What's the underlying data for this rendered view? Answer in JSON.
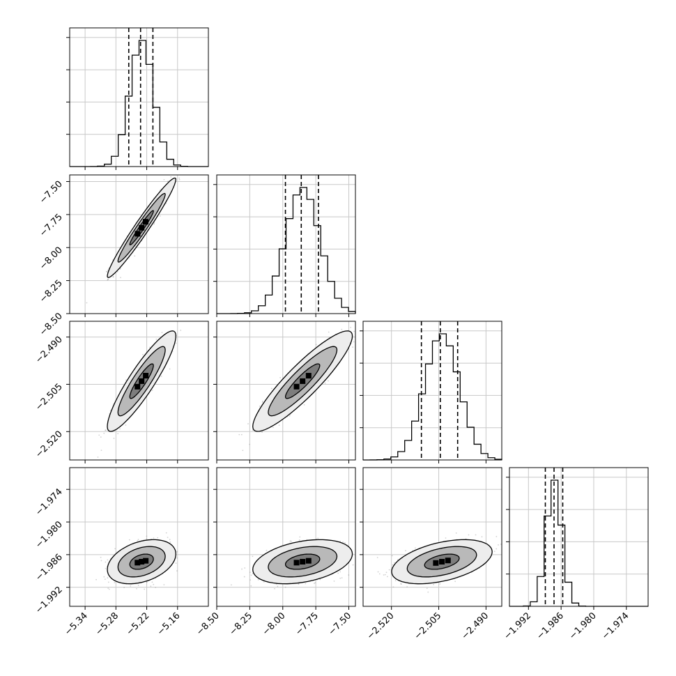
{
  "chart_data": {
    "type": "scatter",
    "title": "",
    "description_params": [
      {
        "mean": -5.23,
        "sigma": 0.023,
        "q16": -5.255,
        "q50": -5.232,
        "q84": -5.208,
        "range": [
          -5.37,
          -5.1
        ],
        "ticks": [
          -5.34,
          -5.28,
          -5.22,
          -5.16
        ],
        "tick_labels": [
          "−5.34",
          "−5.28",
          "−5.22",
          "−5.16"
        ]
      },
      {
        "mean": -7.85,
        "sigma": 0.13,
        "q16": -7.98,
        "q50": -7.86,
        "q84": -7.73,
        "range": [
          -8.5,
          -7.45
        ],
        "ticks": [
          -8.5,
          -8.25,
          -8.0,
          -7.75,
          -7.5
        ],
        "tick_labels": [
          "−8.50",
          "−8.25",
          "−8.00",
          "−7.75",
          "−7.50"
        ]
      },
      {
        "mean": -2.504,
        "sigma": 0.0055,
        "q16": -2.5105,
        "q50": -2.5045,
        "q84": -2.499,
        "range": [
          -2.529,
          -2.485
        ],
        "ticks": [
          -2.52,
          -2.505,
          -2.49
        ],
        "tick_labels": [
          "−2.520",
          "−2.505",
          "−2.490"
        ]
      },
      {
        "mean": -1.9873,
        "sigma": 0.0014,
        "q16": -1.9889,
        "q50": -1.9873,
        "q84": -1.9857,
        "range": [
          -1.9955,
          -1.97
        ],
        "ticks": [
          -1.992,
          -1.986,
          -1.98,
          -1.974
        ],
        "tick_labels": [
          "−1.992",
          "−1.986",
          "−1.980",
          "−1.974"
        ]
      }
    ],
    "correlations": [
      [
        1.0,
        0.97,
        0.9,
        0.35
      ],
      [
        0.97,
        1.0,
        0.9,
        0.35
      ],
      [
        0.9,
        0.9,
        1.0,
        0.45
      ],
      [
        0.35,
        0.35,
        0.45,
        1.0
      ]
    ],
    "histogram_bins": 20,
    "quantile_lines": [
      0.16,
      0.5,
      0.84
    ],
    "contour_levels": [
      0.39,
      0.86,
      0.99
    ],
    "grid": true,
    "colors": {
      "line": "#000000",
      "points": "#9a9a9a",
      "grid": "#c8c8c8"
    }
  }
}
